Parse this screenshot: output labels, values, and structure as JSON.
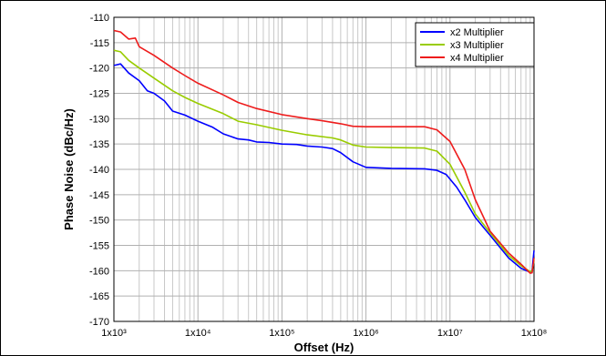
{
  "chart_data": {
    "type": "line",
    "title": "",
    "xlabel": "Offset (Hz)",
    "ylabel": "Phase Noise (dBc/Hz)",
    "x_scale": "log",
    "xlim": [
      1000,
      100000000
    ],
    "ylim": [
      -170,
      -110
    ],
    "x_ticks": [
      1000,
      10000,
      100000,
      1000000,
      10000000,
      100000000
    ],
    "x_tick_labels": [
      "1x10³",
      "1x10⁴",
      "1x10⁵",
      "1x10⁶",
      "1x10⁷",
      "1x10⁸"
    ],
    "y_ticks": [
      -110,
      -115,
      -120,
      -125,
      -130,
      -135,
      -140,
      -145,
      -150,
      -155,
      -160,
      -165,
      -170
    ],
    "y_tick_labels": [
      "-110",
      "-115",
      "-120",
      "-125",
      "-130",
      "-135",
      "-140",
      "-145",
      "-150",
      "-155",
      "-160",
      "-165",
      "-170"
    ],
    "grid": true,
    "legend_position": "top-right",
    "series": [
      {
        "name": "x2 Multiplier",
        "color": "#0000ff",
        "points": [
          [
            1000,
            -119.5
          ],
          [
            1200,
            -119.2
          ],
          [
            1500,
            -121
          ],
          [
            2000,
            -122.5
          ],
          [
            2500,
            -124.5
          ],
          [
            3000,
            -125
          ],
          [
            4000,
            -126.5
          ],
          [
            5000,
            -128.5
          ],
          [
            7000,
            -129.3
          ],
          [
            10000,
            -130.5
          ],
          [
            15000,
            -131.7
          ],
          [
            20000,
            -133
          ],
          [
            30000,
            -134
          ],
          [
            40000,
            -134.2
          ],
          [
            50000,
            -134.6
          ],
          [
            70000,
            -134.7
          ],
          [
            100000,
            -135
          ],
          [
            150000,
            -135.1
          ],
          [
            200000,
            -135.4
          ],
          [
            300000,
            -135.6
          ],
          [
            400000,
            -135.9
          ],
          [
            500000,
            -136.7
          ],
          [
            700000,
            -138.5
          ],
          [
            1000000,
            -139.6
          ],
          [
            2000000,
            -139.8
          ],
          [
            5000000,
            -139.9
          ],
          [
            7000000,
            -140.2
          ],
          [
            9000000,
            -141
          ],
          [
            12000000,
            -143.5
          ],
          [
            15000000,
            -146
          ],
          [
            20000000,
            -149.5
          ],
          [
            30000000,
            -153
          ],
          [
            50000000,
            -157.5
          ],
          [
            70000000,
            -159.5
          ],
          [
            90000000,
            -160.3
          ],
          [
            95000000,
            -160
          ],
          [
            100000000,
            -156
          ]
        ]
      },
      {
        "name": "x3 Multiplier",
        "color": "#99cc00",
        "points": [
          [
            1000,
            -116.5
          ],
          [
            1200,
            -116.8
          ],
          [
            1500,
            -118.5
          ],
          [
            2000,
            -120
          ],
          [
            3000,
            -122
          ],
          [
            5000,
            -124.5
          ],
          [
            7000,
            -125.8
          ],
          [
            10000,
            -127
          ],
          [
            20000,
            -129
          ],
          [
            30000,
            -130.5
          ],
          [
            50000,
            -131.2
          ],
          [
            100000,
            -132.3
          ],
          [
            200000,
            -133.2
          ],
          [
            400000,
            -133.8
          ],
          [
            500000,
            -134.2
          ],
          [
            700000,
            -135.2
          ],
          [
            1000000,
            -135.6
          ],
          [
            2000000,
            -135.7
          ],
          [
            5000000,
            -135.8
          ],
          [
            7000000,
            -136.4
          ],
          [
            10000000,
            -139
          ],
          [
            15000000,
            -144.5
          ],
          [
            20000000,
            -148.8
          ],
          [
            30000000,
            -152.5
          ],
          [
            50000000,
            -157
          ],
          [
            70000000,
            -159
          ],
          [
            90000000,
            -160.2
          ],
          [
            95000000,
            -160
          ],
          [
            100000000,
            -158
          ]
        ]
      },
      {
        "name": "x4 Multiplier",
        "color": "#ee1c1c",
        "points": [
          [
            1000,
            -112.6
          ],
          [
            1200,
            -112.9
          ],
          [
            1500,
            -114.3
          ],
          [
            1800,
            -114.1
          ],
          [
            2000,
            -115.8
          ],
          [
            3000,
            -117.5
          ],
          [
            5000,
            -120
          ],
          [
            7000,
            -121.5
          ],
          [
            10000,
            -123
          ],
          [
            20000,
            -125.3
          ],
          [
            30000,
            -126.8
          ],
          [
            50000,
            -128
          ],
          [
            100000,
            -129.2
          ],
          [
            200000,
            -130
          ],
          [
            300000,
            -130.4
          ],
          [
            500000,
            -131
          ],
          [
            700000,
            -131.5
          ],
          [
            1000000,
            -131.6
          ],
          [
            2000000,
            -131.6
          ],
          [
            5000000,
            -131.6
          ],
          [
            7000000,
            -132.2
          ],
          [
            10000000,
            -134.5
          ],
          [
            15000000,
            -140
          ],
          [
            20000000,
            -146
          ],
          [
            30000000,
            -152.2
          ],
          [
            50000000,
            -156.5
          ],
          [
            70000000,
            -158.7
          ],
          [
            90000000,
            -160.5
          ],
          [
            95000000,
            -160.4
          ],
          [
            100000000,
            -157.5
          ]
        ]
      }
    ]
  }
}
